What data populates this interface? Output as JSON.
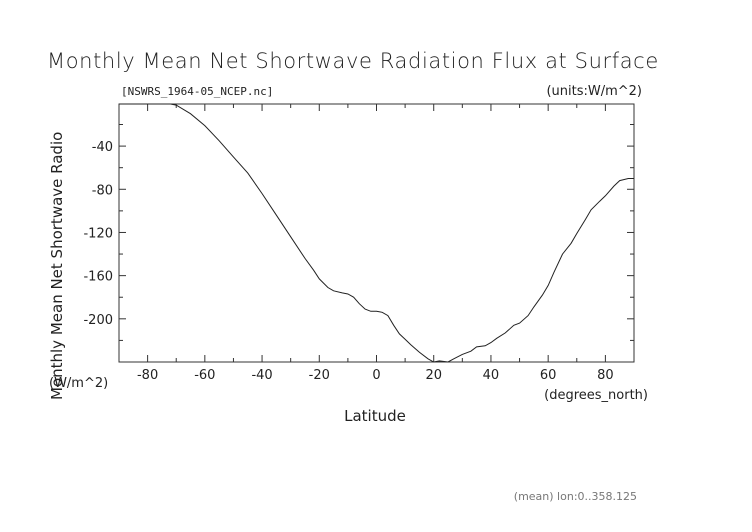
{
  "chart_data": {
    "type": "line",
    "title": "Monthly Mean Net Shortwave Radiation Flux at Surface",
    "file_label": "[NSWRS_1964-05_NCEP.nc]",
    "units_label": "(units:W/m^2)",
    "ylabel": "Monthly Mean Net Shortwave Radio",
    "ylabel_units": "(W/m^2)",
    "xlabel": "Latitude",
    "xlabel_units": "(degrees_north)",
    "footnote": "(mean) lon:0..358.125",
    "xlim": [
      -90,
      90
    ],
    "ylim": [
      -240,
      -1
    ],
    "xticks": [
      -80,
      -60,
      -40,
      -20,
      0,
      20,
      40,
      60,
      80
    ],
    "yticks": [
      -40,
      -80,
      -120,
      -160,
      -200
    ],
    "grid": false,
    "series": [
      {
        "x": [
          -90,
          -85,
          -80,
          -75,
          -72,
          -70,
          -65,
          -60,
          -55,
          -50,
          -45,
          -40,
          -35,
          -30,
          -25,
          -22,
          -20,
          -17,
          -15,
          -12,
          -10,
          -8,
          -6,
          -4,
          -2,
          0,
          2,
          4,
          6,
          8,
          10,
          12,
          15,
          18,
          20,
          22,
          25,
          27,
          30,
          33,
          35,
          38,
          40,
          42,
          45,
          48,
          50,
          53,
          55,
          58,
          60,
          62,
          65,
          68,
          70,
          73,
          75,
          78,
          80,
          83,
          85,
          88,
          90
        ],
        "y": [
          -1,
          -1,
          -1,
          -1,
          -1,
          -2,
          -10,
          -21,
          -35,
          -50,
          -65,
          -84,
          -104,
          -124,
          -144,
          -155,
          -163,
          -171,
          -174,
          -176,
          -177,
          -180,
          -186,
          -191,
          -193,
          -193,
          -194,
          -197,
          -206,
          -214,
          -219,
          -224,
          -231,
          -237,
          -240,
          -239,
          -240,
          -237,
          -233,
          -230,
          -226,
          -225,
          -222,
          -218,
          -213,
          -206,
          -204,
          -197,
          -189,
          -178,
          -169,
          -157,
          -140,
          -130,
          -121,
          -108,
          -99,
          -91,
          -86,
          -77,
          -72,
          -70,
          -70
        ]
      }
    ]
  }
}
